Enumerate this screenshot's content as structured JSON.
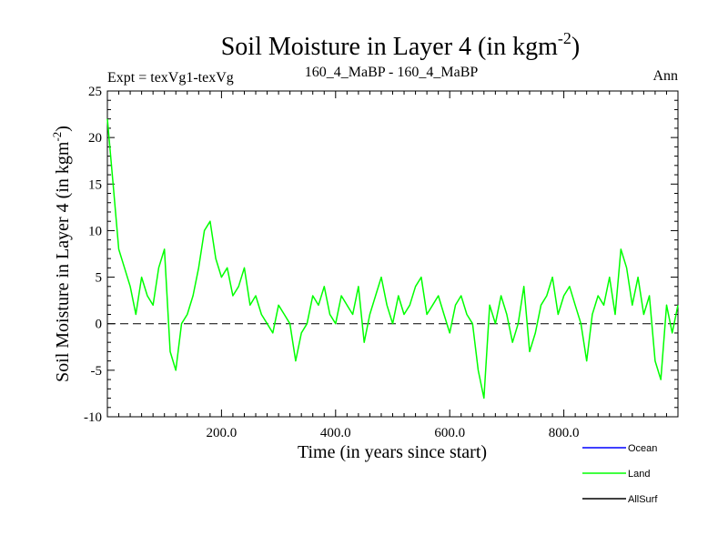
{
  "chart_data": {
    "type": "line",
    "title": "Soil Moisture in Layer 4 (in kgm",
    "title_sup": "-2",
    "title_close": ")",
    "subtitle_left": "Expt = texVg1-texVg",
    "subtitle_center": "160_4_MaBP - 160_4_MaBP",
    "subtitle_right": "Ann",
    "xlabel": "Time (in years since start)",
    "ylabel": "Soil Moisture in Layer 4 (in kgm",
    "ylabel_sup": "-2",
    "ylabel_close": ")",
    "xlim": [
      0,
      1000
    ],
    "ylim": [
      -10,
      25
    ],
    "xticks": [
      200,
      400,
      600,
      800
    ],
    "xtick_labels": [
      "200.0",
      "400.0",
      "600.0",
      "800.0"
    ],
    "yticks": [
      -10,
      -5,
      0,
      5,
      10,
      15,
      20,
      25
    ],
    "ytick_labels": [
      "-10",
      "-5",
      "0",
      "5",
      "10",
      "15",
      "20",
      "25"
    ],
    "zero_line": true,
    "legend": [
      {
        "name": "Ocean",
        "color": "#0000ff"
      },
      {
        "name": "Land",
        "color": "#00ff00"
      },
      {
        "name": "AllSurf",
        "color": "#000000"
      }
    ],
    "series": [
      {
        "name": "Land",
        "color": "#00ff00",
        "x": [
          0,
          10,
          20,
          30,
          40,
          50,
          60,
          70,
          80,
          90,
          100,
          110,
          120,
          130,
          140,
          150,
          160,
          170,
          180,
          190,
          200,
          210,
          220,
          230,
          240,
          250,
          260,
          270,
          280,
          290,
          300,
          310,
          320,
          330,
          340,
          350,
          360,
          370,
          380,
          390,
          400,
          410,
          420,
          430,
          440,
          450,
          460,
          470,
          480,
          490,
          500,
          510,
          520,
          530,
          540,
          550,
          560,
          570,
          580,
          590,
          600,
          610,
          620,
          630,
          640,
          650,
          660,
          670,
          680,
          690,
          700,
          710,
          720,
          730,
          740,
          750,
          760,
          770,
          780,
          790,
          800,
          810,
          820,
          830,
          840,
          850,
          860,
          870,
          880,
          890,
          900,
          910,
          920,
          930,
          940,
          950,
          960,
          970,
          980,
          990,
          1000
        ],
        "values": [
          22,
          15,
          8,
          6,
          4,
          1,
          5,
          3,
          2,
          6,
          8,
          -3,
          -5,
          0,
          1,
          3,
          6,
          10,
          11,
          7,
          5,
          6,
          3,
          4,
          6,
          2,
          3,
          1,
          0,
          -1,
          2,
          1,
          0,
          -4,
          -1,
          0,
          3,
          2,
          4,
          1,
          0,
          3,
          2,
          1,
          4,
          -2,
          1,
          3,
          5,
          2,
          0,
          3,
          1,
          2,
          4,
          5,
          1,
          2,
          3,
          1,
          -1,
          2,
          3,
          1,
          0,
          -5,
          -8,
          2,
          0,
          3,
          1,
          -2,
          0,
          4,
          -3,
          -1,
          2,
          3,
          5,
          1,
          3,
          4,
          2,
          0,
          -4,
          1,
          3,
          2,
          5,
          1,
          8,
          6,
          2,
          5,
          1,
          3,
          -4,
          -6,
          2,
          -1,
          2
        ]
      }
    ]
  }
}
